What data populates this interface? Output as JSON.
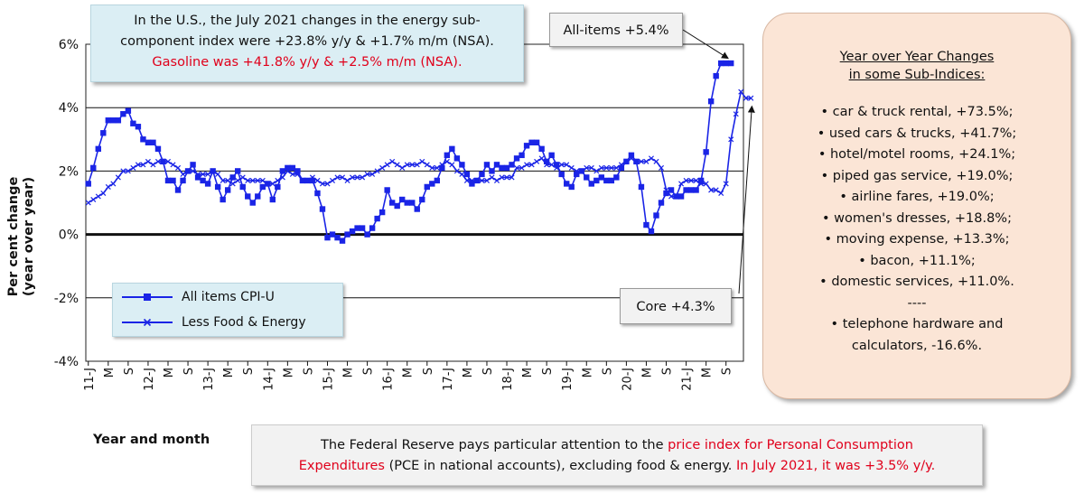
{
  "chart_data": {
    "type": "line",
    "xlabel": "Year and month",
    "ylabel": [
      "Per cent change",
      "(year over year)"
    ],
    "ylim": [
      -4,
      6
    ],
    "y_ticks": [
      "6%",
      "4%",
      "2%",
      "0%",
      "-2%",
      "-4%"
    ],
    "y_tick_values": [
      6,
      4,
      2,
      0,
      -2,
      -4
    ],
    "grid": "horizontal",
    "x_start": "2011-01",
    "x_end": "2021-12",
    "x_tick_labels": [
      "11-J",
      "M",
      "S",
      "12-J",
      "M",
      "S",
      "13-J",
      "M",
      "S",
      "14-J",
      "M",
      "S",
      "15-J",
      "M",
      "S",
      "16-J",
      "M",
      "S",
      "17-J",
      "M",
      "S",
      "18-J",
      "M",
      "S",
      "19-J",
      "M",
      "S",
      "20-J",
      "M",
      "S",
      "21-J",
      "M",
      "S"
    ],
    "series": [
      {
        "name": "All items CPI-U",
        "color": "#1a24e6",
        "marker": "square",
        "values": [
          1.6,
          2.1,
          2.7,
          3.2,
          3.6,
          3.6,
          3.6,
          3.8,
          3.9,
          3.5,
          3.4,
          3.0,
          2.9,
          2.9,
          2.7,
          2.3,
          1.7,
          1.7,
          1.4,
          1.7,
          2.0,
          2.2,
          1.8,
          1.7,
          1.6,
          2.0,
          1.5,
          1.1,
          1.4,
          1.8,
          2.0,
          1.5,
          1.2,
          1.0,
          1.2,
          1.5,
          1.6,
          1.1,
          1.5,
          2.0,
          2.1,
          2.1,
          2.0,
          1.7,
          1.7,
          1.7,
          1.3,
          0.8,
          -0.1,
          0.0,
          -0.1,
          -0.2,
          0.0,
          0.1,
          0.2,
          0.2,
          0.0,
          0.2,
          0.5,
          0.7,
          1.4,
          1.0,
          0.9,
          1.1,
          1.0,
          1.0,
          0.8,
          1.1,
          1.5,
          1.6,
          1.7,
          2.1,
          2.5,
          2.7,
          2.4,
          2.2,
          1.9,
          1.6,
          1.7,
          1.9,
          2.2,
          2.0,
          2.2,
          2.1,
          2.1,
          2.2,
          2.4,
          2.5,
          2.8,
          2.9,
          2.9,
          2.7,
          2.3,
          2.5,
          2.2,
          1.9,
          1.6,
          1.5,
          1.9,
          2.0,
          1.8,
          1.6,
          1.7,
          1.8,
          1.7,
          1.7,
          1.8,
          2.1,
          2.3,
          2.5,
          2.3,
          1.5,
          0.3,
          0.1,
          0.6,
          1.0,
          1.3,
          1.4,
          1.2,
          1.2,
          1.4,
          1.4,
          1.4,
          1.7,
          2.6,
          4.2,
          5.0,
          5.4,
          5.4,
          5.4
        ]
      },
      {
        "name": "Less Food & Energy",
        "color": "#1a24e6",
        "marker": "x",
        "values": [
          1.0,
          1.1,
          1.2,
          1.3,
          1.5,
          1.6,
          1.8,
          2.0,
          2.0,
          2.1,
          2.2,
          2.2,
          2.3,
          2.2,
          2.3,
          2.3,
          2.3,
          2.2,
          2.1,
          1.9,
          2.0,
          2.0,
          1.9,
          1.9,
          1.9,
          2.0,
          1.9,
          1.7,
          1.7,
          1.6,
          1.7,
          1.8,
          1.7,
          1.7,
          1.7,
          1.7,
          1.6,
          1.6,
          1.7,
          1.8,
          2.0,
          1.9,
          1.9,
          1.7,
          1.7,
          1.8,
          1.7,
          1.6,
          1.6,
          1.7,
          1.8,
          1.8,
          1.7,
          1.8,
          1.8,
          1.8,
          1.9,
          1.9,
          2.0,
          2.1,
          2.2,
          2.3,
          2.2,
          2.1,
          2.2,
          2.2,
          2.2,
          2.3,
          2.2,
          2.1,
          2.1,
          2.2,
          2.3,
          2.2,
          2.0,
          1.9,
          1.7,
          1.7,
          1.7,
          1.7,
          1.7,
          1.8,
          1.7,
          1.8,
          1.8,
          1.8,
          2.1,
          2.1,
          2.2,
          2.2,
          2.3,
          2.4,
          2.2,
          2.2,
          2.1,
          2.2,
          2.2,
          2.1,
          2.0,
          2.0,
          2.1,
          2.1,
          2.0,
          2.1,
          2.1,
          2.1,
          2.1,
          2.2,
          2.3,
          2.4,
          2.3,
          2.3,
          2.3,
          2.4,
          2.3,
          2.1,
          1.4,
          1.2,
          1.2,
          1.6,
          1.7,
          1.7,
          1.7,
          1.6,
          1.6,
          1.4,
          1.4,
          1.3,
          1.6,
          3.0,
          3.8,
          4.5,
          4.3,
          4.3
        ]
      }
    ]
  },
  "notes": {
    "top": {
      "line1": "In the U.S., the July 2021 changes in the energy sub-",
      "line2": "component index were +23.8% y/y & +1.7% m/m (NSA).",
      "line3": "Gasoline was +41.8% y/y & +2.5% m/m (NSA)."
    },
    "all_items_callout": "All-items +5.4%",
    "core_callout": "Core +4.3%",
    "legend": {
      "item1": "All items CPI-U",
      "item2": "Less Food & Energy"
    },
    "sub_indices": {
      "title_line1": "Year over Year Changes",
      "title_line2": "in some Sub-Indices:",
      "items": [
        "• car & truck rental, +73.5%;",
        "• used cars & trucks, +41.7%;",
        "• hotel/motel rooms, +24.1%;",
        "• piped gas service, +19.0%;",
        "• airline fares, +19.0%;",
        "• women's dresses, +18.8%;",
        "• moving expense, +13.3%;",
        "• bacon, +11.1%;",
        "• domestic services, +11.0%.",
        "----",
        "• telephone hardware and",
        "calculators, -16.6%."
      ]
    },
    "bottom": {
      "part1": "The Federal Reserve pays particular attention to the ",
      "part2": "price index for Personal Consumption",
      "part3": "Expenditures",
      "part4": " (PCE in national accounts), excluding food & energy. ",
      "part5": "In July 2021, it was +3.5% y/y."
    }
  },
  "colors": {
    "series": "#1a24e6",
    "highlight_text": "#e0001b",
    "note_bg": "#dbeef4",
    "subs_bg": "#fbe5d6"
  }
}
